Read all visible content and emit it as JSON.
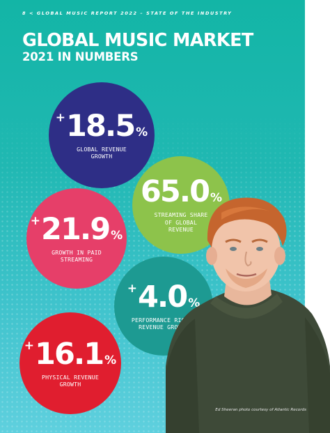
{
  "header": {
    "running_head": "8 < GLOBAL MUSIC REPORT 2022 – STATE OF THE INDUSTRY",
    "title": "GLOBAL MUSIC MARKET",
    "subtitle": "2021 IN NUMBERS"
  },
  "stats": [
    {
      "prefix": "+",
      "value": "18.5",
      "unit": "%",
      "label": "GLOBAL REVENUE\nGROWTH",
      "color": "#2e2e86"
    },
    {
      "prefix": "+",
      "value": "21.9",
      "unit": "%",
      "label": "GROWTH IN PAID\nSTREAMING",
      "color": "#e63f69"
    },
    {
      "prefix": "",
      "value": "65.0",
      "unit": "%",
      "label": "STREAMING SHARE\nOF GLOBAL\nREVENUE",
      "color": "#8dc34b"
    },
    {
      "prefix": "+",
      "value": "4.0",
      "unit": "%",
      "label": "PERFORMANCE RIGHTS\nREVENUE GROWTH",
      "color": "#1d9a92"
    },
    {
      "prefix": "+",
      "value": "16.1",
      "unit": "%",
      "label": "PHYSICAL REVENUE\nGROWTH",
      "color": "#e01e2f"
    }
  ],
  "photo": {
    "icon": "portrait-photo",
    "credit": "Ed Sheeran photo courtesy of Atlantic Records"
  },
  "colors": {
    "background_top": "#13b5a6",
    "background_bottom": "#5fd0de"
  }
}
